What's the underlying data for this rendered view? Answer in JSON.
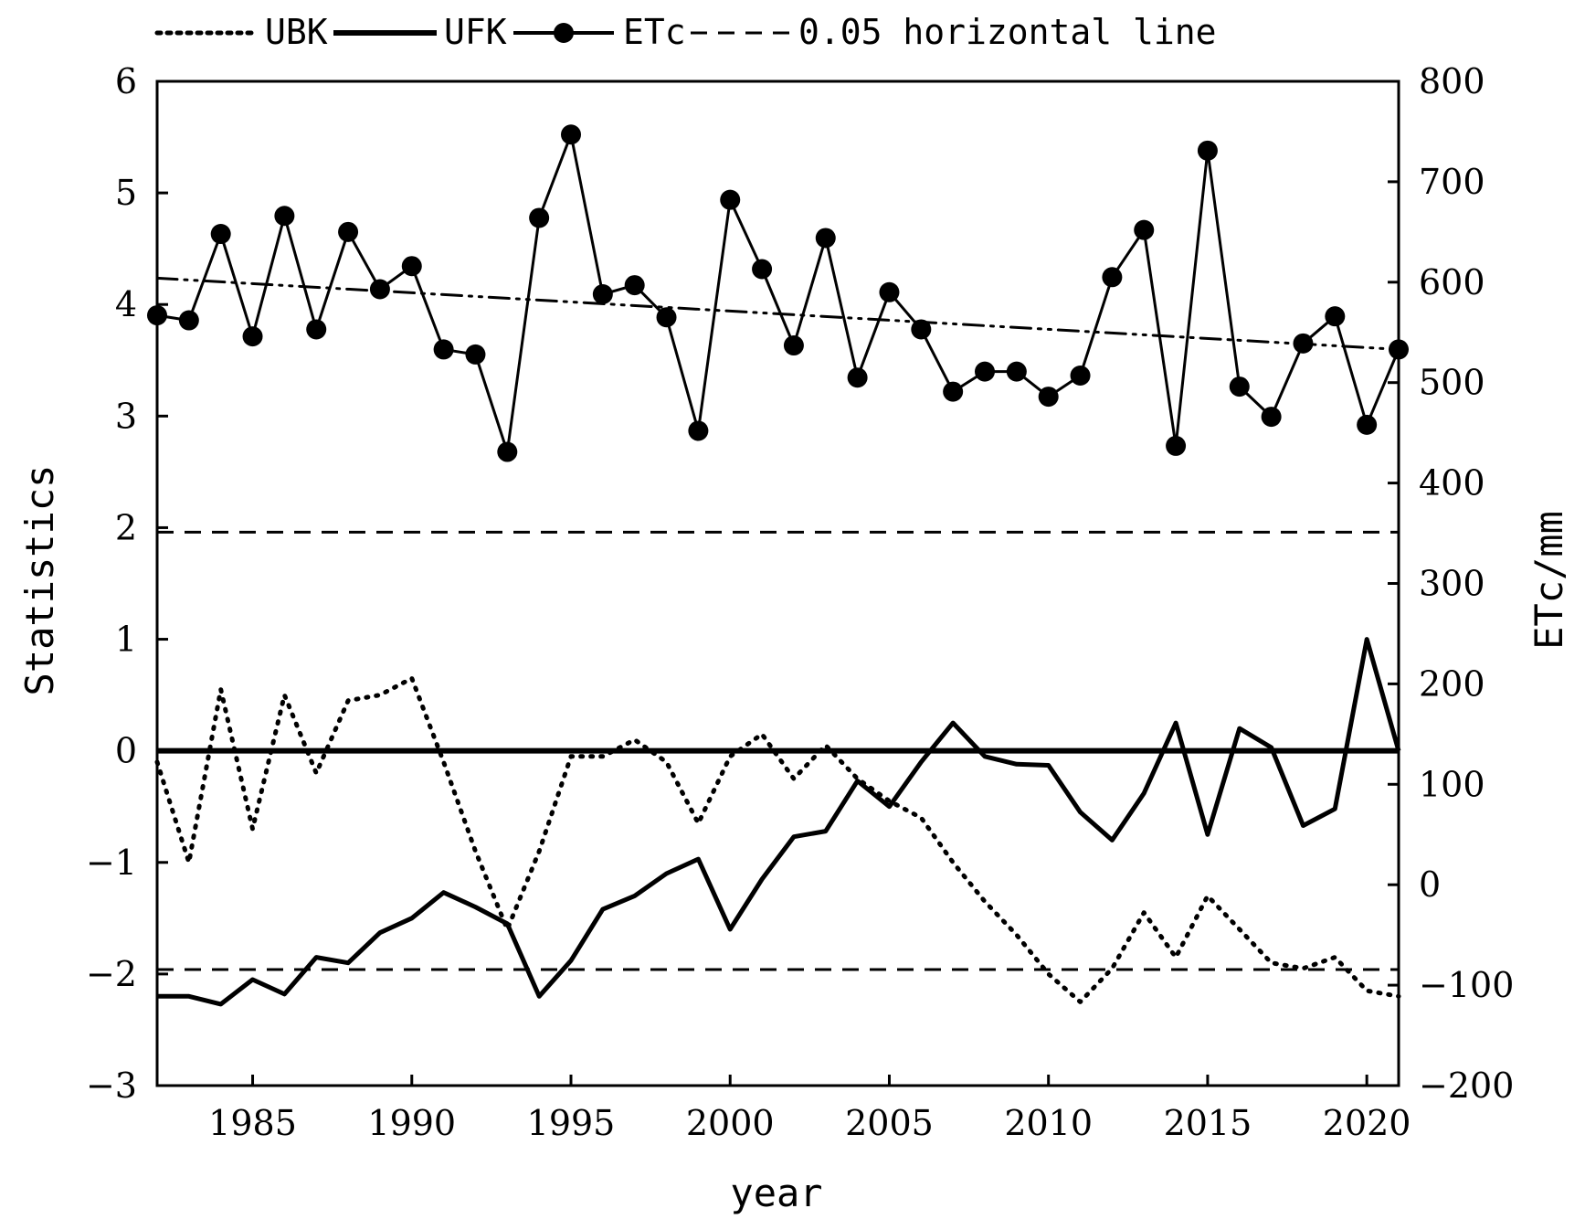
{
  "chart_data": {
    "type": "line",
    "xlabel": "year",
    "ylabel_left": "Statistics",
    "ylabel_right": "ETc/mm",
    "xlim": [
      1982,
      2021
    ],
    "ylim_left": [
      -3,
      6
    ],
    "ylim_right": [
      -200,
      800
    ],
    "x_ticks": [
      1985,
      1990,
      1995,
      2000,
      2005,
      2010,
      2015,
      2020
    ],
    "y_ticks_left": [
      -3,
      -2,
      -1,
      0,
      1,
      2,
      3,
      4,
      5,
      6
    ],
    "y_ticks_right": [
      -200,
      -100,
      0,
      100,
      200,
      300,
      400,
      500,
      600,
      700,
      800
    ],
    "legend_position": "top",
    "legend": [
      "UBK",
      "UFK",
      "ETc",
      "0.05 horizontal line"
    ],
    "years": [
      1982,
      1983,
      1984,
      1985,
      1986,
      1987,
      1988,
      1989,
      1990,
      1991,
      1992,
      1993,
      1994,
      1995,
      1996,
      1997,
      1998,
      1999,
      2000,
      2001,
      2002,
      2003,
      2004,
      2005,
      2006,
      2007,
      2008,
      2009,
      2010,
      2011,
      2012,
      2013,
      2014,
      2015,
      2016,
      2017,
      2018,
      2019,
      2020,
      2021
    ],
    "series": [
      {
        "name": "UBK",
        "axis": "left",
        "style": "dotted",
        "values": [
          -0.1,
          -1.0,
          0.55,
          -0.7,
          0.5,
          -0.2,
          0.45,
          0.5,
          0.65,
          -0.1,
          -0.9,
          -1.6,
          -0.9,
          -0.05,
          -0.05,
          0.1,
          -0.1,
          -0.65,
          -0.05,
          0.15,
          -0.25,
          0.05,
          -0.25,
          -0.45,
          -0.6,
          -1.0,
          -1.35,
          -1.65,
          -2.0,
          -2.25,
          -1.95,
          -1.45,
          -1.85,
          -1.3,
          -1.6,
          -1.9,
          -1.95,
          -1.85,
          -2.15,
          -2.2
        ]
      },
      {
        "name": "UFK",
        "axis": "left",
        "style": "solid",
        "values": [
          -2.2,
          -2.2,
          -2.27,
          -2.05,
          -2.18,
          -1.85,
          -1.9,
          -1.63,
          -1.5,
          -1.27,
          -1.4,
          -1.55,
          -2.2,
          -1.88,
          -1.42,
          -1.3,
          -1.1,
          -0.97,
          -1.6,
          -1.15,
          -0.77,
          -0.72,
          -0.27,
          -0.5,
          -0.1,
          0.25,
          -0.05,
          -0.12,
          -0.13,
          -0.55,
          -0.8,
          -0.38,
          0.25,
          -0.75,
          0.2,
          0.03,
          -0.67,
          -0.52,
          1.0,
          0.0
        ]
      },
      {
        "name": "ETc",
        "axis": "right",
        "style": "solid-markers",
        "values": [
          567,
          562,
          648,
          546,
          666,
          553,
          650,
          593,
          616,
          533,
          528,
          431,
          664,
          747,
          588,
          597,
          565,
          452,
          682,
          613,
          537,
          644,
          505,
          590,
          553,
          491,
          511,
          511,
          486,
          507,
          605,
          652,
          437,
          731,
          496,
          466,
          539,
          566,
          458,
          533
        ]
      },
      {
        "name": "ETc trend",
        "axis": "right",
        "style": "dash-dot-dot",
        "values": [
          604,
          533
        ],
        "x": [
          1982,
          2021
        ]
      },
      {
        "name": "0.05 horizontal line",
        "axis": "left",
        "style": "dashed",
        "lines": [
          1.96,
          -1.96
        ]
      },
      {
        "name": "zero line",
        "axis": "left",
        "style": "thick",
        "lines": [
          0
        ]
      }
    ]
  }
}
